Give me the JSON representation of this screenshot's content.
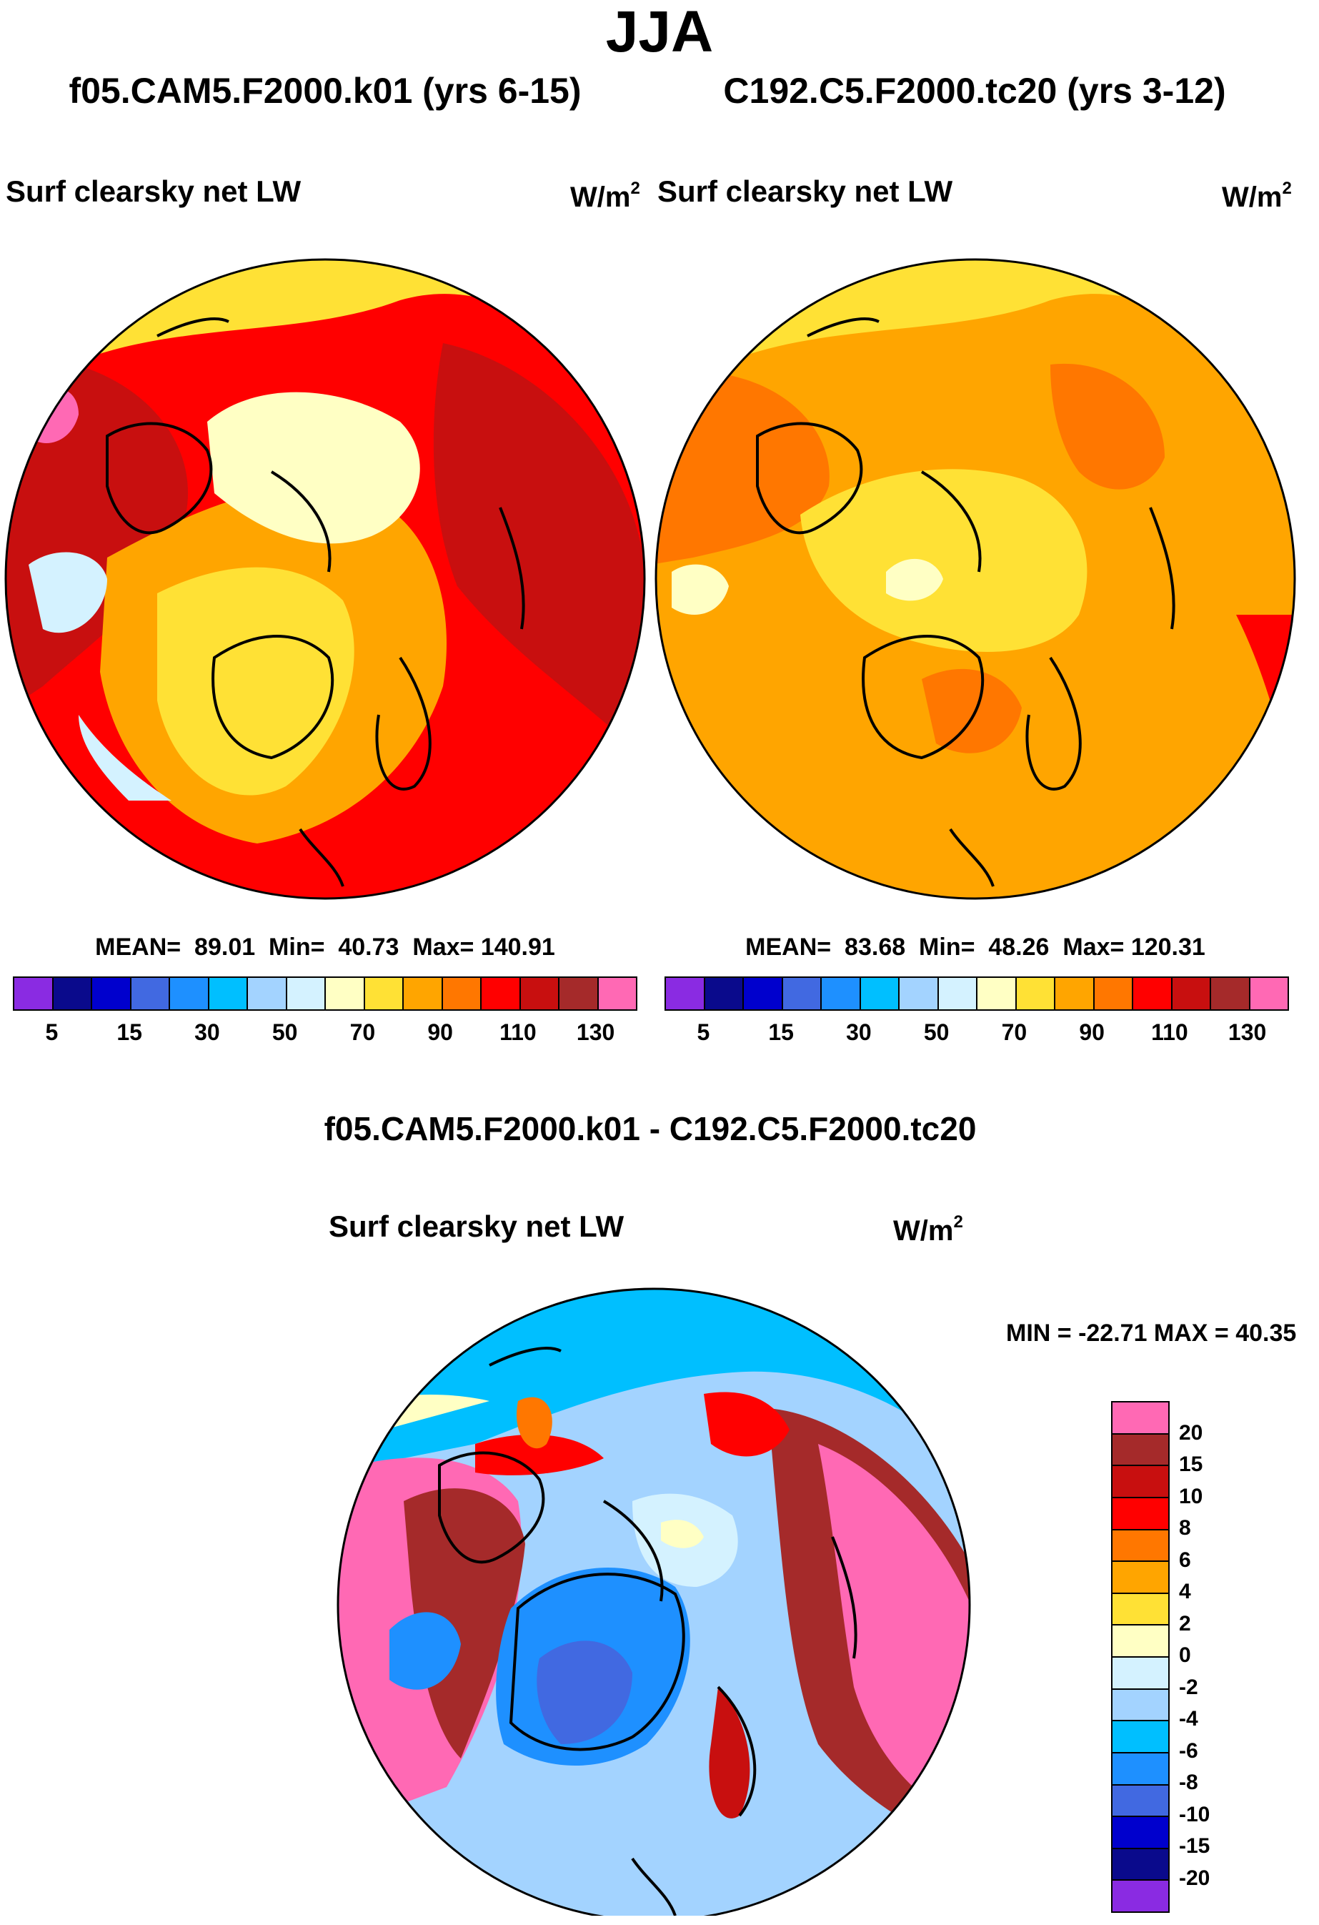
{
  "title": "JJA",
  "colors": {
    "abs": [
      "#8a2be2",
      "#0a0a8c",
      "#0000cd",
      "#4169e1",
      "#1e90ff",
      "#00bfff",
      "#a3d3ff",
      "#d4f2ff",
      "#ffffc4",
      "#ffe135",
      "#ffa500",
      "#ff7700",
      "#ff0000",
      "#c80f0f",
      "#a52a2a",
      "#ff69b4"
    ],
    "diff": [
      "#ff69b4",
      "#a52a2a",
      "#c80f0f",
      "#ff0000",
      "#ff7700",
      "#ffa500",
      "#ffe135",
      "#ffffc4",
      "#d4f2ff",
      "#a3d3ff",
      "#00bfff",
      "#1e90ff",
      "#4169e1",
      "#0000cd",
      "#0a0a8c",
      "#8a2be2"
    ],
    "coast": "#000000"
  },
  "panels": [
    {
      "case": "f05.CAM5.F2000.k01 (yrs 6-15)",
      "variable": "Surf clearsky net LW",
      "units": "W/m",
      "units_exp": "2",
      "stats": {
        "mean_label": "MEAN=",
        "mean": "89.01",
        "min_label": "Min=",
        "min": "40.73",
        "max_label": "Max=",
        "max": "140.91"
      },
      "ticks": [
        "5",
        "15",
        "30",
        "50",
        "70",
        "90",
        "110",
        "130"
      ]
    },
    {
      "case": "C192.C5.F2000.tc20 (yrs 3-12)",
      "variable": "Surf clearsky net LW",
      "units": "W/m",
      "units_exp": "2",
      "stats": {
        "mean_label": "MEAN=",
        "mean": "83.68",
        "min_label": "Min=",
        "min": "48.26",
        "max_label": "Max=",
        "max": "120.31"
      },
      "ticks": [
        "5",
        "15",
        "30",
        "50",
        "70",
        "90",
        "110",
        "130"
      ]
    }
  ],
  "difference": {
    "title": "f05.CAM5.F2000.k01 - C192.C5.F2000.tc20",
    "variable": "Surf clearsky net LW",
    "units": "W/m",
    "units_exp": "2",
    "minmax": "MIN = -22.71 MAX =  40.35",
    "ticks": [
      "20",
      "15",
      "10",
      "8",
      "6",
      "4",
      "2",
      "0",
      "-2",
      "-4",
      "-6",
      "-8",
      "-10",
      "-15",
      "-20"
    ]
  }
}
